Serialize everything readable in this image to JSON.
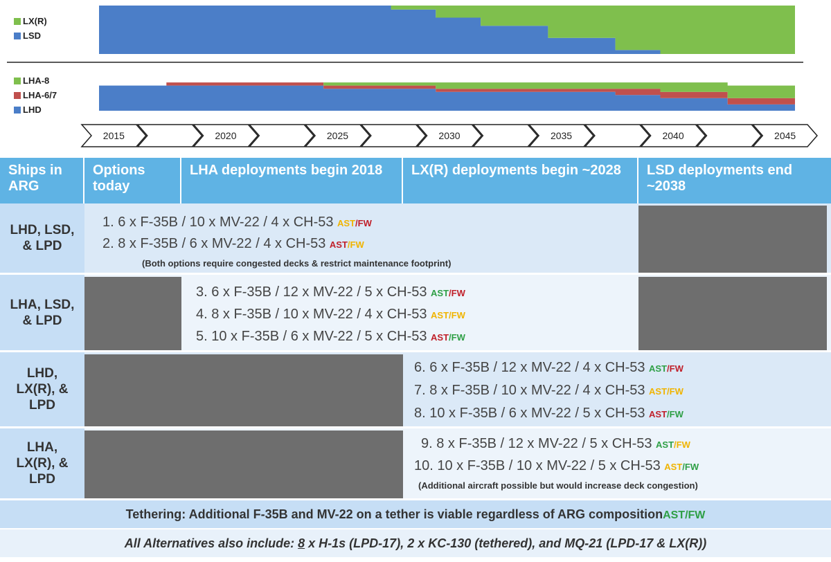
{
  "colors": {
    "lxr": "#7fbf4d",
    "lsd": "#4b7ec8",
    "lha8": "#7fbf4d",
    "lha67": "#c0504d",
    "lhd": "#4b7ec8",
    "ast_green": "#2e9f45",
    "ast_yellow": "#f0b400",
    "ast_red": "#c0202a",
    "header": "#5fb3e4",
    "label_bg": "#c6def5",
    "band_a": "#dbe9f7",
    "band_b": "#edf4fb",
    "gray": "#6e6e6e"
  },
  "chart_data": [
    {
      "type": "area",
      "stacked": true,
      "legend": [
        "LX(R)",
        "LSD"
      ],
      "legend_placement": "left",
      "x": [
        2015,
        2020,
        2023,
        2025,
        2027,
        2028,
        2030,
        2032,
        2035,
        2038,
        2040,
        2046
      ],
      "series": [
        {
          "name": "LSD",
          "values": [
            12,
            12,
            12,
            12,
            12,
            11,
            9,
            7,
            4,
            1,
            0,
            0
          ]
        },
        {
          "name": "LX(R)",
          "values": [
            0,
            0,
            0,
            0,
            0,
            1,
            3,
            5,
            8,
            11,
            12,
            12
          ]
        }
      ]
    },
    {
      "type": "area",
      "stacked": true,
      "legend": [
        "LHA-8",
        "LHA-6/7",
        "LHD"
      ],
      "legend_placement": "left",
      "x": [
        2015,
        2018,
        2020,
        2025,
        2030,
        2035,
        2038,
        2040,
        2043,
        2046
      ],
      "series": [
        {
          "name": "LHD",
          "values": [
            8,
            8,
            8,
            7,
            6,
            6,
            5,
            4,
            2,
            1
          ]
        },
        {
          "name": "LHA-6/7",
          "values": [
            0,
            1,
            1,
            1,
            1,
            1,
            2,
            2,
            2,
            2
          ]
        },
        {
          "name": "LHA-8",
          "values": [
            0,
            0,
            0,
            1,
            2,
            2,
            2,
            3,
            4,
            5
          ]
        }
      ]
    }
  ],
  "timeline": {
    "years": [
      "2015",
      "2020",
      "2025",
      "2030",
      "2035",
      "2040",
      "2045"
    ]
  },
  "header": {
    "col1": "Ships in ARG",
    "col2": "Options today",
    "col3": "LHA deployments begin 2018",
    "col4": "LX(R) deployments begin ~2028",
    "col5": "LSD deployments end ~2038"
  },
  "rows": [
    {
      "label": "LHD, LSD, & LPD",
      "options": [
        {
          "num": "1.",
          "text": "6 x F-35B / 10 x MV-22 / 4 x CH-53",
          "ast": "AST",
          "fw": "FW",
          "ast_color": "yellow",
          "fw_color": "red"
        },
        {
          "num": "2.",
          "text": "8 x F-35B / 6 x MV-22 / 4 x CH-53",
          "ast": "AST",
          "fw": "FW",
          "ast_color": "red",
          "fw_color": "yellow"
        }
      ],
      "note": "(Both options require congested decks & restrict maintenance footprint)"
    },
    {
      "label": "LHA, LSD, & LPD",
      "options": [
        {
          "num": "3.",
          "text": "6 x F-35B / 12 x MV-22 / 5 x CH-53",
          "ast": "AST",
          "fw": "FW",
          "ast_color": "green",
          "fw_color": "red"
        },
        {
          "num": "4.",
          "text": "8 x F-35B / 10 x MV-22 / 4 x CH-53",
          "ast": "AST",
          "fw": "FW",
          "ast_color": "yellow",
          "fw_color": "yellow"
        },
        {
          "num": "5.",
          "text": "10 x F-35B / 6 x MV-22 / 5 x CH-53",
          "ast": "AST",
          "fw": "FW",
          "ast_color": "red",
          "fw_color": "green"
        }
      ]
    },
    {
      "label": "LHD, LX(R), & LPD",
      "options": [
        {
          "num": "6.",
          "text": "6 x F-35B / 12 x MV-22 / 4 x CH-53",
          "ast": "AST",
          "fw": "FW",
          "ast_color": "green",
          "fw_color": "red"
        },
        {
          "num": "7.",
          "text": "8 x F-35B / 10 x MV-22 / 4 x CH-53",
          "ast": "AST",
          "fw": "FW",
          "ast_color": "yellow",
          "fw_color": "yellow"
        },
        {
          "num": "8.",
          "text": "10 x F-35B / 6 x MV-22 / 5 x CH-53",
          "ast": "AST",
          "fw": "FW",
          "ast_color": "red",
          "fw_color": "green"
        }
      ]
    },
    {
      "label": "LHA, LX(R), & LPD",
      "options": [
        {
          "num": "9.",
          "text": "8 x F-35B / 12 x MV-22 / 5 x CH-53",
          "ast": "AST",
          "fw": "FW",
          "ast_color": "green",
          "fw_color": "yellow"
        },
        {
          "num": "10.",
          "text": "10 x F-35B / 10 x MV-22 / 5 x CH-53",
          "ast": "AST",
          "fw": "FW",
          "ast_color": "yellow",
          "fw_color": "green"
        }
      ],
      "note": "(Additional aircraft possible but would increase deck congestion)"
    }
  ],
  "footer": {
    "tether_text": "Tethering: Additional F-35B and MV-22 on a tether is viable regardless of ARG composition",
    "tether_ast": "AST",
    "tether_fw": "FW",
    "alt_prefix": "All Alternatives also include: ",
    "alt_num": "8",
    "alt_rest": " x H-1s (LPD-17), 2 x KC-130 (tethered), and MQ-21 (LPD-17 & LX(R))"
  }
}
